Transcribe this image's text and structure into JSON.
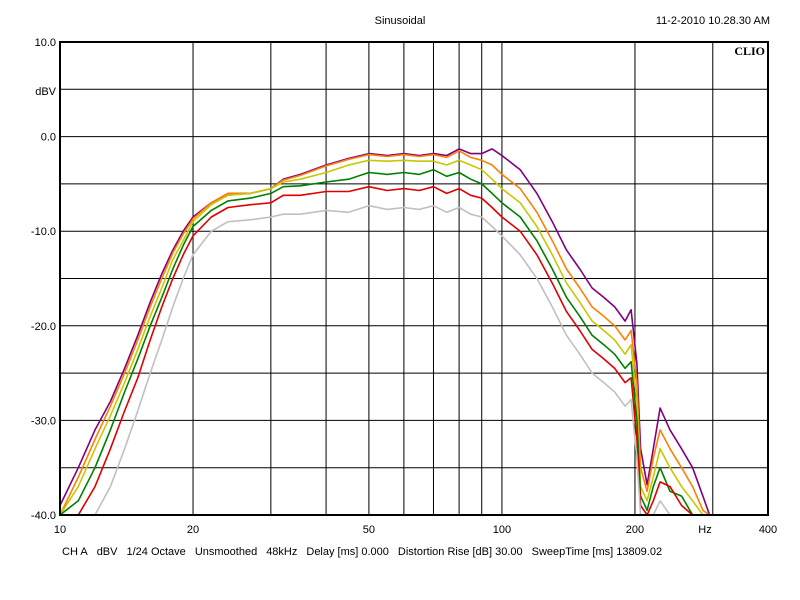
{
  "chart_data": {
    "type": "line",
    "title": "Sinusoidal",
    "timestamp": "11-2-2010 10.28.30 AM",
    "brand": "CLIO",
    "ylabel": "dBV",
    "xlabel": "Hz",
    "xscale": "log",
    "xlim": [
      10,
      400
    ],
    "ylim": [
      -40,
      10
    ],
    "grid": true,
    "x_ticks": [
      {
        "v": 10,
        "label": "10"
      },
      {
        "v": 20,
        "label": "20"
      },
      {
        "v": 50,
        "label": "50"
      },
      {
        "v": 100,
        "label": "100"
      },
      {
        "v": 200,
        "label": "200"
      },
      {
        "v": 400,
        "label": "400"
      }
    ],
    "x_grid": [
      20,
      30,
      40,
      50,
      60,
      70,
      80,
      90,
      100,
      200,
      300
    ],
    "y_ticks": [
      {
        "v": 10,
        "label": "10.0"
      },
      {
        "v": 0,
        "label": "0.0"
      },
      {
        "v": -10,
        "label": "-10.0"
      },
      {
        "v": -20,
        "label": "-20.0"
      },
      {
        "v": -30,
        "label": "-30.0"
      },
      {
        "v": -40,
        "label": "-40.0"
      }
    ],
    "y_grid": [
      5,
      0,
      -5,
      -10,
      -15,
      -20,
      -25,
      -30,
      -35
    ],
    "x": [
      10,
      11,
      12,
      13,
      14,
      15,
      16,
      17,
      18,
      19,
      20,
      22,
      24,
      27,
      30,
      32,
      35,
      40,
      45,
      50,
      55,
      60,
      65,
      70,
      75,
      80,
      85,
      90,
      95,
      100,
      110,
      120,
      130,
      140,
      150,
      160,
      170,
      180,
      190,
      196,
      202,
      206,
      213,
      220,
      228,
      240,
      255,
      270,
      285,
      295
    ],
    "series": [
      {
        "name": "purple",
        "color": "#800080",
        "values": [
          -39,
          -35,
          -31,
          -28,
          -24.5,
          -21,
          -17.5,
          -14.5,
          -12,
          -10,
          -8.5,
          -7,
          -6,
          -6,
          -5.5,
          -4.5,
          -4,
          -3,
          -2.3,
          -1.8,
          -2,
          -1.8,
          -2,
          -1.8,
          -2,
          -1.3,
          -1.8,
          -1.8,
          -1.3,
          -2,
          -3.5,
          -6,
          -9,
          -12,
          -14,
          -16,
          -17,
          -18,
          -19.5,
          -18.3,
          -24,
          -33,
          -36.8,
          -33,
          -28.7,
          -31,
          -33,
          -35,
          -38,
          -40
        ]
      },
      {
        "name": "orange",
        "color": "#ff8000",
        "values": [
          -40,
          -36,
          -32,
          -28.5,
          -25,
          -21.5,
          -18,
          -15,
          -12.3,
          -10.3,
          -8.7,
          -7,
          -6,
          -6,
          -5.5,
          -4.6,
          -4.1,
          -3.1,
          -2.4,
          -1.9,
          -2.1,
          -1.9,
          -2.1,
          -1.9,
          -2.2,
          -1.5,
          -2.2,
          -2.5,
          -3,
          -4,
          -5.5,
          -8,
          -11,
          -14,
          -16,
          -18,
          -19,
          -20,
          -21.5,
          -20.5,
          -26,
          -35,
          -37.5,
          -34,
          -31,
          -33,
          -35,
          -37,
          -39.5,
          -40
        ]
      },
      {
        "name": "yellow",
        "color": "#c8c800",
        "values": [
          -40,
          -37,
          -33,
          -29.5,
          -26,
          -22.5,
          -19,
          -16,
          -13,
          -11,
          -9,
          -7.2,
          -6.2,
          -6,
          -5.5,
          -4.8,
          -4.5,
          -3.8,
          -3,
          -2.5,
          -2.6,
          -2.5,
          -2.6,
          -2.6,
          -3,
          -2.5,
          -3,
          -3.5,
          -4.5,
          -5.5,
          -7,
          -9.5,
          -12.5,
          -15.5,
          -17.5,
          -19.5,
          -20.5,
          -21.5,
          -23,
          -22,
          -28,
          -37,
          -38.5,
          -36,
          -33,
          -35,
          -37,
          -38.5,
          -40,
          -40
        ]
      },
      {
        "name": "green",
        "color": "#008000",
        "values": [
          -40,
          -38.5,
          -35,
          -31,
          -27,
          -23.5,
          -20,
          -17,
          -14,
          -11.5,
          -9.5,
          -7.8,
          -6.8,
          -6.5,
          -6,
          -5.3,
          -5.2,
          -4.8,
          -4.5,
          -3.8,
          -4,
          -3.8,
          -4,
          -3.5,
          -4.2,
          -3.8,
          -4.5,
          -5,
          -6,
          -7,
          -8.5,
          -11,
          -14,
          -17,
          -19,
          -21,
          -22,
          -23,
          -24.5,
          -23.8,
          -30,
          -38,
          -39.5,
          -37,
          -35,
          -37.5,
          -38,
          -40,
          -40,
          -40
        ]
      },
      {
        "name": "red",
        "color": "#e00000",
        "values": [
          -40,
          -40,
          -37,
          -33,
          -29,
          -25.5,
          -21.5,
          -18,
          -15,
          -12.5,
          -10.5,
          -8.5,
          -7.5,
          -7.2,
          -7,
          -6.2,
          -6.2,
          -5.8,
          -5.8,
          -5.3,
          -5.7,
          -5.5,
          -5.7,
          -5.3,
          -6,
          -5.5,
          -6.2,
          -6.5,
          -7.5,
          -8.5,
          -10,
          -12.5,
          -15.5,
          -18.5,
          -20.5,
          -22.5,
          -23.5,
          -24.5,
          -26,
          -25.5,
          -32,
          -39,
          -40,
          -38.5,
          -36.5,
          -37,
          -39,
          -40,
          -40,
          -40
        ]
      },
      {
        "name": "gray",
        "color": "#c0c0c0",
        "values": [
          -40,
          -40,
          -40,
          -37,
          -33,
          -29,
          -25,
          -21.5,
          -18,
          -15,
          -12.5,
          -10,
          -9,
          -8.8,
          -8.5,
          -8.2,
          -8.2,
          -7.8,
          -8,
          -7.3,
          -7.7,
          -7.5,
          -7.7,
          -7.3,
          -8,
          -7.5,
          -8.2,
          -8.5,
          -9.5,
          -10.5,
          -12.5,
          -15,
          -18,
          -21,
          -23,
          -25,
          -26,
          -27,
          -28.5,
          -27.8,
          -34,
          -40,
          -40,
          -40,
          -38.5,
          -40,
          -40,
          -40,
          -40,
          -40
        ]
      }
    ],
    "footer": [
      "CH A",
      "dBV",
      "1/24 Octave",
      "Unsmoothed",
      "48kHz",
      "Delay [ms] 0.000",
      "Distortion Rise [dB] 30.00",
      "SweepTime [ms] 13809.02"
    ]
  }
}
